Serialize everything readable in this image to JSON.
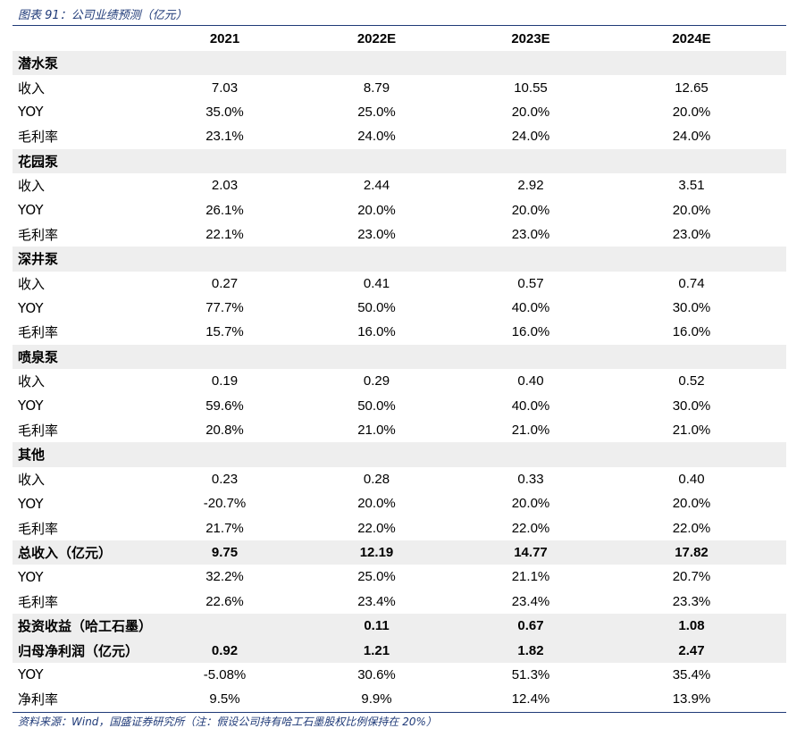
{
  "caption": "图表 91：公司业绩预测（亿元）",
  "source": "资料来源：Wind，国盛证券研究所（注：假设公司持有哈工石墨股权比例保持在 20%）",
  "header": {
    "label": "",
    "cols": [
      "2021",
      "2022E",
      "2023E",
      "2024E"
    ]
  },
  "rows": [
    {
      "type": "section",
      "label": "潜水泵",
      "values": [
        "",
        "",
        "",
        ""
      ]
    },
    {
      "type": "normal",
      "label": "收入",
      "values": [
        "7.03",
        "8.79",
        "10.55",
        "12.65"
      ]
    },
    {
      "type": "normal",
      "label": "YOY",
      "values": [
        "35.0%",
        "25.0%",
        "20.0%",
        "20.0%"
      ]
    },
    {
      "type": "normal",
      "label": "毛利率",
      "values": [
        "23.1%",
        "24.0%",
        "24.0%",
        "24.0%"
      ]
    },
    {
      "type": "section",
      "label": "花园泵",
      "values": [
        "",
        "",
        "",
        ""
      ]
    },
    {
      "type": "normal",
      "label": "收入",
      "values": [
        "2.03",
        "2.44",
        "2.92",
        "3.51"
      ]
    },
    {
      "type": "normal",
      "label": "YOY",
      "values": [
        "26.1%",
        "20.0%",
        "20.0%",
        "20.0%"
      ]
    },
    {
      "type": "normal",
      "label": "毛利率",
      "values": [
        "22.1%",
        "23.0%",
        "23.0%",
        "23.0%"
      ]
    },
    {
      "type": "section",
      "label": "深井泵",
      "values": [
        "",
        "",
        "",
        ""
      ]
    },
    {
      "type": "normal",
      "label": "收入",
      "values": [
        "0.27",
        "0.41",
        "0.57",
        "0.74"
      ]
    },
    {
      "type": "normal",
      "label": "YOY",
      "values": [
        "77.7%",
        "50.0%",
        "40.0%",
        "30.0%"
      ]
    },
    {
      "type": "normal",
      "label": "毛利率",
      "values": [
        "15.7%",
        "16.0%",
        "16.0%",
        "16.0%"
      ]
    },
    {
      "type": "section",
      "label": "喷泉泵",
      "values": [
        "",
        "",
        "",
        ""
      ]
    },
    {
      "type": "normal",
      "label": "收入",
      "values": [
        "0.19",
        "0.29",
        "0.40",
        "0.52"
      ]
    },
    {
      "type": "normal",
      "label": "YOY",
      "values": [
        "59.6%",
        "50.0%",
        "40.0%",
        "30.0%"
      ]
    },
    {
      "type": "normal",
      "label": "毛利率",
      "values": [
        "20.8%",
        "21.0%",
        "21.0%",
        "21.0%"
      ]
    },
    {
      "type": "section",
      "label": "其他",
      "values": [
        "",
        "",
        "",
        ""
      ]
    },
    {
      "type": "normal",
      "label": "收入",
      "values": [
        "0.23",
        "0.28",
        "0.33",
        "0.40"
      ]
    },
    {
      "type": "normal",
      "label": "YOY",
      "values": [
        "-20.7%",
        "20.0%",
        "20.0%",
        "20.0%"
      ]
    },
    {
      "type": "normal",
      "label": "毛利率",
      "values": [
        "21.7%",
        "22.0%",
        "22.0%",
        "22.0%"
      ]
    },
    {
      "type": "total",
      "label": "总收入（亿元）",
      "values": [
        "9.75",
        "12.19",
        "14.77",
        "17.82"
      ]
    },
    {
      "type": "normal",
      "label": "YOY",
      "values": [
        "32.2%",
        "25.0%",
        "21.1%",
        "20.7%"
      ]
    },
    {
      "type": "normal",
      "label": "毛利率",
      "values": [
        "22.6%",
        "23.4%",
        "23.4%",
        "23.3%"
      ]
    },
    {
      "type": "total",
      "label": "投资收益（哈工石墨）",
      "values": [
        "",
        "0.11",
        "0.67",
        "1.08"
      ]
    },
    {
      "type": "total",
      "label": "归母净利润（亿元）",
      "values": [
        "0.92",
        "1.21",
        "1.82",
        "2.47"
      ]
    },
    {
      "type": "normal",
      "label": "YOY",
      "values": [
        "-5.08%",
        "30.6%",
        "51.3%",
        "35.4%"
      ]
    },
    {
      "type": "normal",
      "label": "净利率",
      "values": [
        "9.5%",
        "9.9%",
        "12.4%",
        "13.9%"
      ]
    }
  ]
}
